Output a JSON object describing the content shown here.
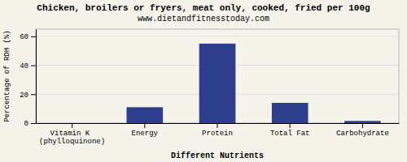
{
  "chart_data": {
    "type": "bar",
    "title": "Chicken, broilers or fryers, meat only, cooked, fried per 100g",
    "subtitle": "www.dietandfitnesstoday.com",
    "categories": [
      "Vitamin K (phylloquinone)",
      "Energy",
      "Protein",
      "Total Fat",
      "Carbohydrate"
    ],
    "values": [
      0,
      11,
      55,
      14,
      1.5
    ],
    "color": "#2d3e8c",
    "xlabel": "Different Nutrients",
    "ylabel": "Percentage of RDH (%)",
    "ylim": [
      0,
      65
    ],
    "yticks": [
      0,
      20,
      40,
      60
    ],
    "grid": true
  }
}
